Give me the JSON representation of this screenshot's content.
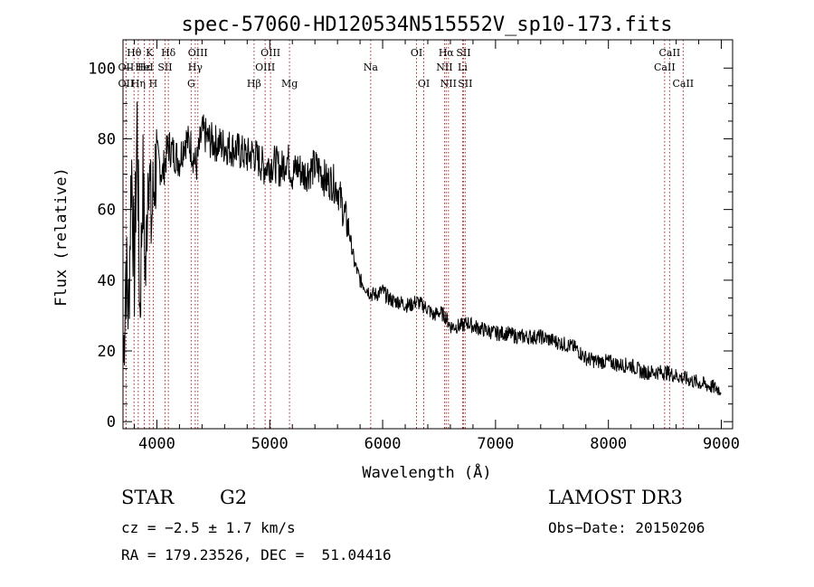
{
  "chart_data": {
    "type": "line",
    "title": "spec-57060-HD120534N515552V_sp10-173.fits",
    "xlabel": "Wavelength (Å)",
    "ylabel": "Flux (relative)",
    "xlim": [
      3700,
      9100
    ],
    "ylim": [
      -2,
      108
    ],
    "xticks": [
      4000,
      5000,
      6000,
      7000,
      8000,
      9000
    ],
    "yticks": [
      0,
      20,
      40,
      60,
      80,
      100
    ],
    "grid": false,
    "series": [
      {
        "name": "flux",
        "x": [
          3700,
          3725,
          3750,
          3775,
          3800,
          3825,
          3850,
          3875,
          3900,
          3925,
          3950,
          3975,
          4000,
          4050,
          4100,
          4150,
          4200,
          4250,
          4300,
          4350,
          4400,
          4450,
          4500,
          4600,
          4700,
          4800,
          4850,
          4900,
          4950,
          5000,
          5050,
          5100,
          5150,
          5200,
          5250,
          5300,
          5350,
          5400,
          5450,
          5500,
          5550,
          5600,
          5650,
          5700,
          5750,
          5800,
          5850,
          5900,
          5950,
          6000,
          6050,
          6100,
          6150,
          6200,
          6250,
          6300,
          6350,
          6400,
          6450,
          6500,
          6550,
          6600,
          6650,
          6700,
          6750,
          6800,
          6900,
          7000,
          7100,
          7200,
          7300,
          7400,
          7500,
          7600,
          7700,
          7800,
          7900,
          8000,
          8100,
          8200,
          8300,
          8400,
          8500,
          8600,
          8700,
          8800,
          8900,
          9000
        ],
        "values": [
          10,
          45,
          30,
          75,
          40,
          85,
          30,
          70,
          40,
          78,
          55,
          68,
          75,
          70,
          78,
          76,
          74,
          80,
          78,
          72,
          82,
          80,
          79,
          78,
          77,
          75,
          76,
          74,
          72,
          73,
          73,
          71,
          75,
          70,
          72,
          70,
          71,
          72,
          71,
          68,
          68,
          66,
          60,
          54,
          45,
          40,
          38,
          36,
          36,
          37,
          35,
          34,
          34,
          33,
          33,
          34,
          33,
          32,
          30,
          31,
          30,
          27,
          27,
          27,
          28,
          27,
          26,
          25,
          25,
          24,
          24,
          24,
          23,
          22,
          21,
          18,
          17,
          17,
          16,
          16,
          14,
          14,
          14,
          13,
          12,
          11,
          10,
          9
        ]
      }
    ],
    "lines": [
      {
        "label": "OII",
        "x": 3727,
        "row": 2
      },
      {
        "label": "OII",
        "x": 3727,
        "row": 3
      },
      {
        "label": "Hθ",
        "x": 3798,
        "row": 1
      },
      {
        "label": "Hη",
        "x": 3835,
        "row": 3
      },
      {
        "label": "Hε",
        "x": 3889,
        "row": 2
      },
      {
        "label": "HeI",
        "x": 3889,
        "row": 2
      },
      {
        "label": "K",
        "x": 3934,
        "row": 1
      },
      {
        "label": "H",
        "x": 3968,
        "row": 3
      },
      {
        "label": "Hδ",
        "x": 4102,
        "row": 1
      },
      {
        "label": "SII",
        "x": 4072,
        "row": 2
      },
      {
        "label": "G",
        "x": 4304,
        "row": 3
      },
      {
        "label": "Hγ",
        "x": 4340,
        "row": 2
      },
      {
        "label": "OIII",
        "x": 4363,
        "row": 1
      },
      {
        "label": "Hβ",
        "x": 4861,
        "row": 3
      },
      {
        "label": "OIII",
        "x": 4959,
        "row": 2
      },
      {
        "label": "OIII",
        "x": 5007,
        "row": 1
      },
      {
        "label": "Mg",
        "x": 5175,
        "row": 3
      },
      {
        "label": "Na",
        "x": 5894,
        "row": 2
      },
      {
        "label": "OI",
        "x": 6300,
        "row": 1
      },
      {
        "label": "OI",
        "x": 6364,
        "row": 3
      },
      {
        "label": "NII",
        "x": 6548,
        "row": 2
      },
      {
        "label": "Hα",
        "x": 6563,
        "row": 1
      },
      {
        "label": "NII",
        "x": 6583,
        "row": 3
      },
      {
        "label": "Li",
        "x": 6708,
        "row": 2
      },
      {
        "label": "SII",
        "x": 6716,
        "row": 1
      },
      {
        "label": "SII",
        "x": 6731,
        "row": 3
      },
      {
        "label": "CaII",
        "x": 8498,
        "row": 2
      },
      {
        "label": "CaII",
        "x": 8542,
        "row": 1
      },
      {
        "label": "CaII",
        "x": 8662,
        "row": 3
      }
    ]
  },
  "info": {
    "object_class": "STAR",
    "subclass": "G2",
    "survey": "LAMOST DR3",
    "cz": "cz = −2.5 ± 1.7 km/s",
    "obs_date": "Obs−Date: 20150206",
    "radec": "RA = 179.23526, DEC =  51.04416"
  },
  "colors": {
    "spectrum": "#000000",
    "line_markers": "#a52a2a",
    "axes": "#000000"
  }
}
